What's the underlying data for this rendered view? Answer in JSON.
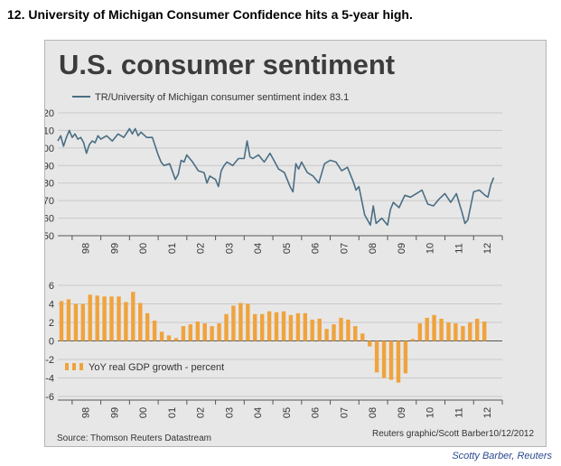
{
  "heading": "12. University of Michigan Consumer Confidence hits a 5-year high.",
  "credit": "Scotty Barber, Reuters",
  "figure": {
    "title": "U.S. consumer sentiment",
    "source": "Source: Thomson Reuters Datastream",
    "attribution": "Reuters graphic/Scott Barber10/12/2012"
  },
  "chart_data": [
    {
      "type": "line",
      "legend": "TR/University of Michigan consumer sentiment index  83.1",
      "color": "#4a6e84",
      "ylim": [
        50,
        120
      ],
      "yticks": [
        120,
        110,
        100,
        90,
        80,
        70,
        60,
        50
      ],
      "x_tick_labels": [
        "98",
        "99",
        "00",
        "01",
        "02",
        "03",
        "04",
        "05",
        "06",
        "07",
        "08",
        "09",
        "10",
        "11",
        "12"
      ],
      "grid": true,
      "x": [
        1997.5,
        1997.6,
        1997.7,
        1997.8,
        1997.9,
        1998.0,
        1998.1,
        1998.2,
        1998.3,
        1998.4,
        1998.5,
        1998.6,
        1998.7,
        1998.8,
        1998.9,
        1999.0,
        1999.2,
        1999.4,
        1999.6,
        1999.8,
        2000.0,
        2000.1,
        2000.2,
        2000.3,
        2000.4,
        2000.6,
        2000.8,
        2001.0,
        2001.1,
        2001.2,
        2001.4,
        2001.6,
        2001.7,
        2001.8,
        2001.9,
        2002.0,
        2002.2,
        2002.4,
        2002.6,
        2002.7,
        2002.8,
        2003.0,
        2003.1,
        2003.2,
        2003.3,
        2003.4,
        2003.6,
        2003.8,
        2004.0,
        2004.1,
        2004.2,
        2004.3,
        2004.5,
        2004.7,
        2004.9,
        2005.0,
        2005.2,
        2005.4,
        2005.6,
        2005.7,
        2005.8,
        2005.9,
        2006.0,
        2006.2,
        2006.4,
        2006.6,
        2006.8,
        2007.0,
        2007.2,
        2007.4,
        2007.6,
        2007.8,
        2007.9,
        2008.0,
        2008.2,
        2008.4,
        2008.5,
        2008.6,
        2008.8,
        2008.9,
        2009.0,
        2009.1,
        2009.2,
        2009.4,
        2009.6,
        2009.8,
        2010.0,
        2010.2,
        2010.4,
        2010.6,
        2010.8,
        2011.0,
        2011.2,
        2011.4,
        2011.6,
        2011.7,
        2011.8,
        2012.0,
        2012.2,
        2012.4,
        2012.5,
        2012.6,
        2012.7
      ],
      "y": [
        104,
        107,
        101,
        106,
        110,
        106,
        108,
        105,
        106,
        103,
        97,
        102,
        104,
        103,
        107,
        105,
        107,
        104,
        108,
        106,
        111,
        108,
        111,
        107,
        109,
        106,
        106,
        96,
        92,
        90,
        91,
        82,
        85,
        93,
        92,
        96,
        92,
        87,
        86,
        80,
        84,
        82,
        78,
        87,
        90,
        92,
        90,
        94,
        94,
        104,
        95,
        94,
        96,
        92,
        97,
        94,
        88,
        86,
        78,
        75,
        91,
        88,
        92,
        86,
        84,
        80,
        91,
        93,
        92,
        87,
        89,
        81,
        76,
        78,
        62,
        56,
        67,
        57,
        60,
        58,
        56,
        65,
        69,
        66,
        73,
        72,
        74,
        76,
        68,
        67,
        71,
        74,
        69,
        74,
        63,
        57,
        59,
        75,
        76,
        73,
        72,
        79,
        83.1
      ]
    },
    {
      "type": "bar",
      "legend": "YoY real GDP growth - percent",
      "color": "#f0a33c",
      "ylim": [
        -6,
        6
      ],
      "yticks": [
        6,
        4,
        2,
        0,
        -2,
        -4,
        -6
      ],
      "x_tick_labels": [
        "98",
        "99",
        "00",
        "01",
        "02",
        "03",
        "04",
        "05",
        "06",
        "07",
        "08",
        "09",
        "10",
        "11",
        "12"
      ],
      "grid": true,
      "x": [
        1997.625,
        1997.875,
        1998.125,
        1998.375,
        1998.625,
        1998.875,
        1999.125,
        1999.375,
        1999.625,
        1999.875,
        2000.125,
        2000.375,
        2000.625,
        2000.875,
        2001.125,
        2001.375,
        2001.625,
        2001.875,
        2002.125,
        2002.375,
        2002.625,
        2002.875,
        2003.125,
        2003.375,
        2003.625,
        2003.875,
        2004.125,
        2004.375,
        2004.625,
        2004.875,
        2005.125,
        2005.375,
        2005.625,
        2005.875,
        2006.125,
        2006.375,
        2006.625,
        2006.875,
        2007.125,
        2007.375,
        2007.625,
        2007.875,
        2008.125,
        2008.375,
        2008.625,
        2008.875,
        2009.125,
        2009.375,
        2009.625,
        2009.875,
        2010.125,
        2010.375,
        2010.625,
        2010.875,
        2011.125,
        2011.375,
        2011.625,
        2011.875,
        2012.125,
        2012.375
      ],
      "values": [
        4.3,
        4.5,
        4.0,
        4.0,
        5.0,
        4.9,
        4.8,
        4.8,
        4.8,
        4.2,
        5.3,
        4.1,
        3.0,
        2.2,
        1.0,
        0.6,
        0.3,
        1.6,
        1.8,
        2.1,
        1.9,
        1.6,
        1.9,
        2.9,
        3.8,
        4.1,
        4.0,
        2.9,
        2.9,
        3.2,
        3.1,
        3.2,
        2.8,
        3.0,
        3.0,
        2.3,
        2.4,
        1.3,
        1.8,
        2.5,
        2.3,
        1.6,
        0.8,
        -0.6,
        -3.4,
        -4.0,
        -4.2,
        -4.5,
        -3.5,
        0.2,
        1.9,
        2.5,
        2.8,
        2.4,
        2.0,
        1.9,
        1.6,
        2.0,
        2.4,
        2.1
      ]
    }
  ]
}
